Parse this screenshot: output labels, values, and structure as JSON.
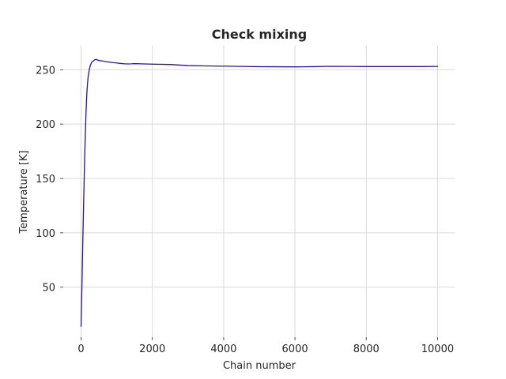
{
  "chart_data": {
    "type": "line",
    "title": "Check mixing",
    "xlabel": "Chain number",
    "ylabel": "Temperature [K]",
    "xlim": [
      -500,
      10500
    ],
    "ylim": [
      4,
      272
    ],
    "x_ticks": [
      0,
      2000,
      4000,
      6000,
      8000,
      10000
    ],
    "y_ticks": [
      50,
      100,
      150,
      200,
      250
    ],
    "x_tick_labels": [
      "0",
      "2000",
      "4000",
      "6000",
      "8000",
      "10000"
    ],
    "y_tick_labels": [
      "50",
      "100",
      "150",
      "200",
      "250"
    ],
    "grid": true,
    "legend": null,
    "series": [
      {
        "color": "#2a0fa8",
        "x": [
          0,
          20,
          40,
          60,
          80,
          100,
          120,
          140,
          160,
          180,
          200,
          230,
          260,
          300,
          340,
          380,
          420,
          460,
          500,
          600,
          700,
          800,
          900,
          1000,
          1100,
          1200,
          1300,
          1400,
          1500,
          1700,
          2000,
          2500,
          3000,
          3500,
          4000,
          4500,
          5000,
          5500,
          6000,
          6500,
          7000,
          7500,
          8000,
          8500,
          9000,
          9500,
          10000
        ],
        "y": [
          14,
          45,
          78,
          110,
          140,
          168,
          192,
          212,
          227,
          237,
          244,
          250,
          254,
          257,
          258,
          259,
          259.5,
          259,
          258.5,
          258,
          257.5,
          257,
          256.5,
          256.2,
          255.8,
          255.5,
          255.3,
          255.4,
          255.6,
          255.4,
          255.1,
          254.8,
          253.8,
          253.5,
          253.3,
          253.0,
          252.8,
          252.7,
          252.6,
          252.8,
          253.1,
          253.0,
          252.9,
          252.9,
          252.9,
          252.9,
          253.0
        ]
      }
    ]
  }
}
